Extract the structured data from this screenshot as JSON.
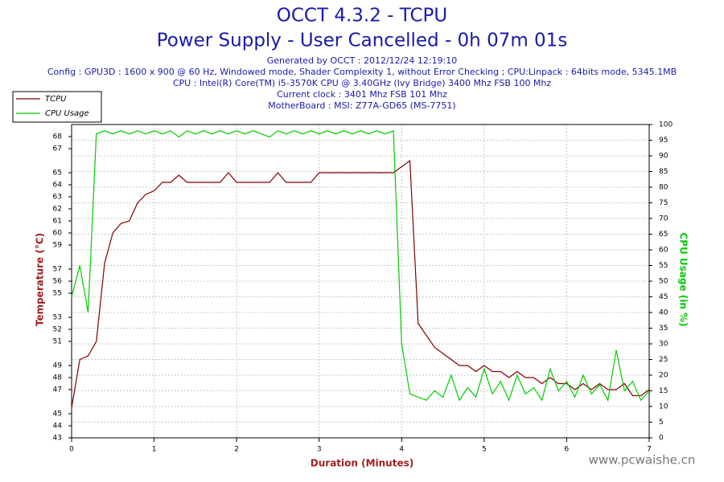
{
  "chart_data": {
    "type": "line",
    "title": "OCCT 4.3.2 - TCPU",
    "subtitle": "Power Supply - User Cancelled - 0h 07m 01s",
    "info": [
      "Generated by OCCT : 2012/12/24 12:19:10",
      "Config : GPU3D : 1600 x 900 @ 60 Hz, Windowed mode, Shader Complexity 1, without Error Checking ; CPU:Linpack : 64bits mode, 5345.1MB",
      "CPU : Intel(R) Core(TM) i5-3570K CPU @ 3.40GHz (Ivy Bridge) 3400 Mhz FSB 100 Mhz",
      "Current clock : 3401 Mhz FSB 101 Mhz",
      "MotherBoard : MSI: Z77A-GD65 (MS-7751)"
    ],
    "xlabel": "Duration (Minutes)",
    "ylabel": "Temperature (°C)",
    "y2label": "CPU Usage (in %)",
    "watermark": "www.pcwaishe.cn",
    "xlim": [
      0,
      7
    ],
    "xticks": [
      0,
      1,
      2,
      3,
      4,
      5,
      6,
      7
    ],
    "ylim": [
      43,
      69
    ],
    "yticks": [
      43,
      44,
      45,
      47,
      48,
      49,
      51,
      52,
      53,
      55,
      56,
      57,
      59,
      60,
      61,
      62,
      63,
      64,
      65,
      67,
      68
    ],
    "y2lim": [
      0,
      100
    ],
    "y2ticks": [
      0,
      5,
      10,
      15,
      20,
      25,
      30,
      35,
      40,
      45,
      50,
      55,
      60,
      65,
      70,
      75,
      80,
      85,
      90,
      95,
      100
    ],
    "grid": true,
    "legend": "top-left",
    "x": [
      0,
      0.1,
      0.2,
      0.3,
      0.4,
      0.5,
      0.6,
      0.7,
      0.8,
      0.9,
      1,
      1.1,
      1.2,
      1.3,
      1.4,
      1.5,
      1.6,
      1.7,
      1.8,
      1.9,
      2,
      2.1,
      2.2,
      2.3,
      2.4,
      2.5,
      2.6,
      2.7,
      2.8,
      2.9,
      3,
      3.1,
      3.2,
      3.3,
      3.4,
      3.5,
      3.6,
      3.7,
      3.8,
      3.9,
      4,
      4.1,
      4.2,
      4.3,
      4.4,
      4.5,
      4.6,
      4.7,
      4.8,
      4.9,
      5,
      5.1,
      5.2,
      5.3,
      5.4,
      5.5,
      5.6,
      5.7,
      5.8,
      5.9,
      6,
      6.1,
      6.2,
      6.3,
      6.4,
      6.5,
      6.6,
      6.7,
      6.8,
      6.9,
      7
    ],
    "series": [
      {
        "name": "TCPU",
        "color": "#800000",
        "axis": "y",
        "values": [
          45.5,
          49.5,
          49.8,
          51,
          57.5,
          60,
          60.8,
          61,
          62.5,
          63.2,
          63.5,
          64.2,
          64.2,
          64.8,
          64.2,
          64.2,
          64.2,
          64.2,
          64.2,
          65,
          64.2,
          64.2,
          64.2,
          64.2,
          64.2,
          65,
          64.2,
          64.2,
          64.2,
          64.2,
          65,
          65,
          65,
          65,
          65,
          65,
          65,
          65,
          65,
          65,
          65.5,
          66,
          52.5,
          51.5,
          50.5,
          50,
          49.5,
          49,
          49,
          48.5,
          49,
          48.5,
          48.5,
          48,
          48.5,
          48,
          48,
          47.5,
          48,
          47.5,
          47.5,
          47,
          47.5,
          47,
          47.5,
          47,
          47,
          47.5,
          46.5,
          46.5,
          47
        ]
      },
      {
        "name": "CPU Usage",
        "color": "#00cc00",
        "axis": "y2",
        "values": [
          45,
          55,
          40,
          97,
          98,
          97,
          98,
          97,
          98,
          97,
          98,
          97,
          98,
          96,
          98,
          97,
          98,
          97,
          98,
          97,
          98,
          97,
          98,
          97,
          96,
          98,
          97,
          98,
          97,
          98,
          97,
          98,
          97,
          98,
          97,
          98,
          97,
          98,
          97,
          98,
          30,
          14,
          13,
          12,
          15,
          13,
          20,
          12,
          16,
          13,
          22,
          14,
          18,
          12,
          20,
          14,
          16,
          12,
          22,
          15,
          18,
          13,
          20,
          14,
          17,
          12,
          28,
          15,
          18,
          12,
          15
        ]
      }
    ]
  }
}
